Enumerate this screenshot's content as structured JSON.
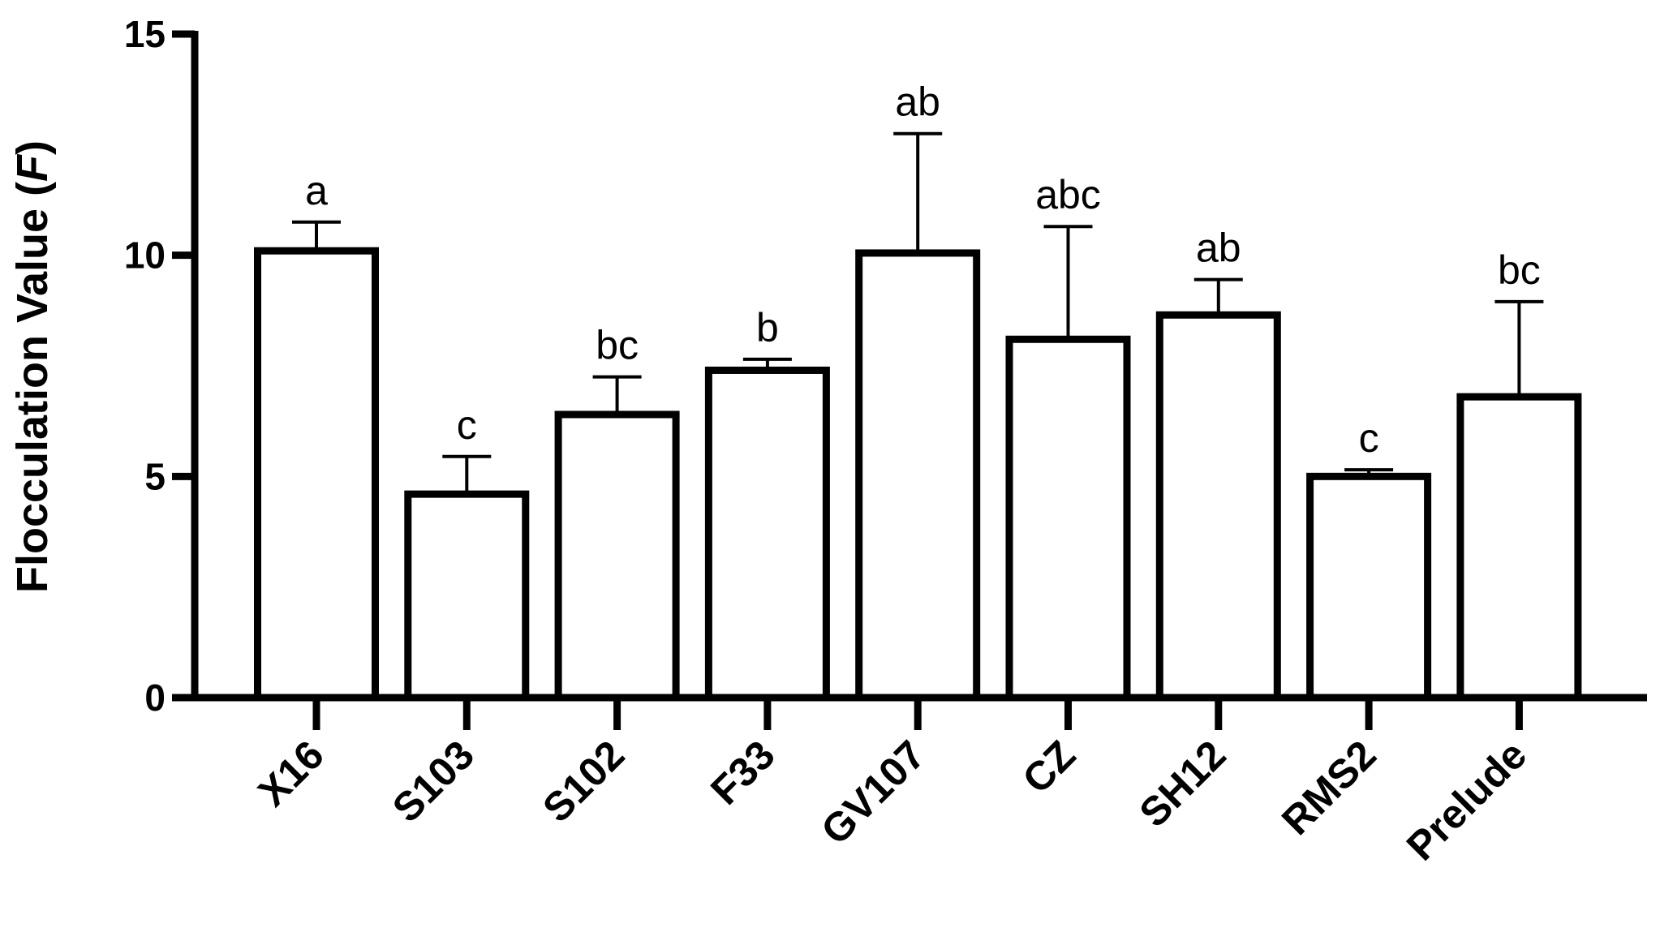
{
  "chart_data": {
    "type": "bar",
    "title": "",
    "xlabel": "",
    "ylabel": "Flocculation Value (",
    "ylabel_symbol": "F",
    "ylabel_close": ")",
    "ylim": [
      0,
      15
    ],
    "yticks": [
      0,
      5,
      10,
      15
    ],
    "grid": false,
    "categories": [
      "X16",
      "S103",
      "S102",
      "F33",
      "GV107",
      "CZ",
      "SH12",
      "RMS2",
      "Prelude"
    ],
    "values": [
      10.1,
      4.6,
      6.4,
      7.4,
      10.05,
      8.1,
      8.65,
      5.0,
      6.8
    ],
    "error_upper": [
      0.65,
      0.85,
      0.85,
      0.25,
      2.7,
      2.55,
      0.8,
      0.15,
      2.15
    ],
    "significance": [
      "a",
      "c",
      "bc",
      "b",
      "ab",
      "abc",
      "ab",
      "c",
      "bc"
    ],
    "colors": {
      "bar_fill": "#ffffff",
      "bar_stroke": "#000000",
      "axis": "#000000"
    }
  }
}
